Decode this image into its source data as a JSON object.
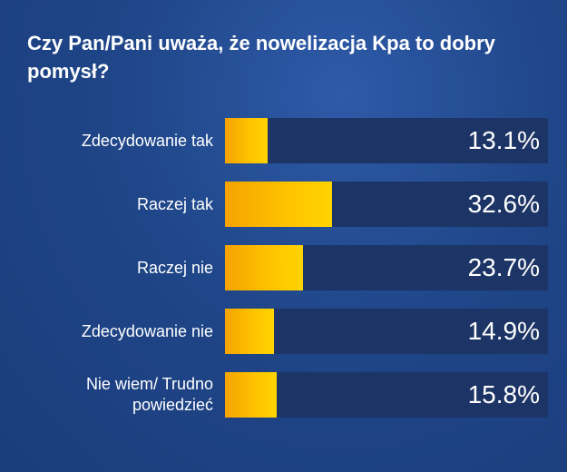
{
  "chart_data": {
    "type": "bar",
    "orientation": "horizontal",
    "title": "Czy Pan/Pani uważa, że nowelizacja Kpa to dobry pomysł?",
    "categories": [
      "Zdecydowanie tak",
      "Raczej tak",
      "Raczej nie",
      "Zdecydowanie nie",
      "Nie wiem/ Trudno\npowiedzieć"
    ],
    "values": [
      13.1,
      32.6,
      23.7,
      14.9,
      15.8
    ],
    "value_labels": [
      "13.1%",
      "32.6%",
      "23.7%",
      "14.9%",
      "15.8%"
    ],
    "color": "#ffc400",
    "xlim": [
      0,
      100
    ]
  }
}
